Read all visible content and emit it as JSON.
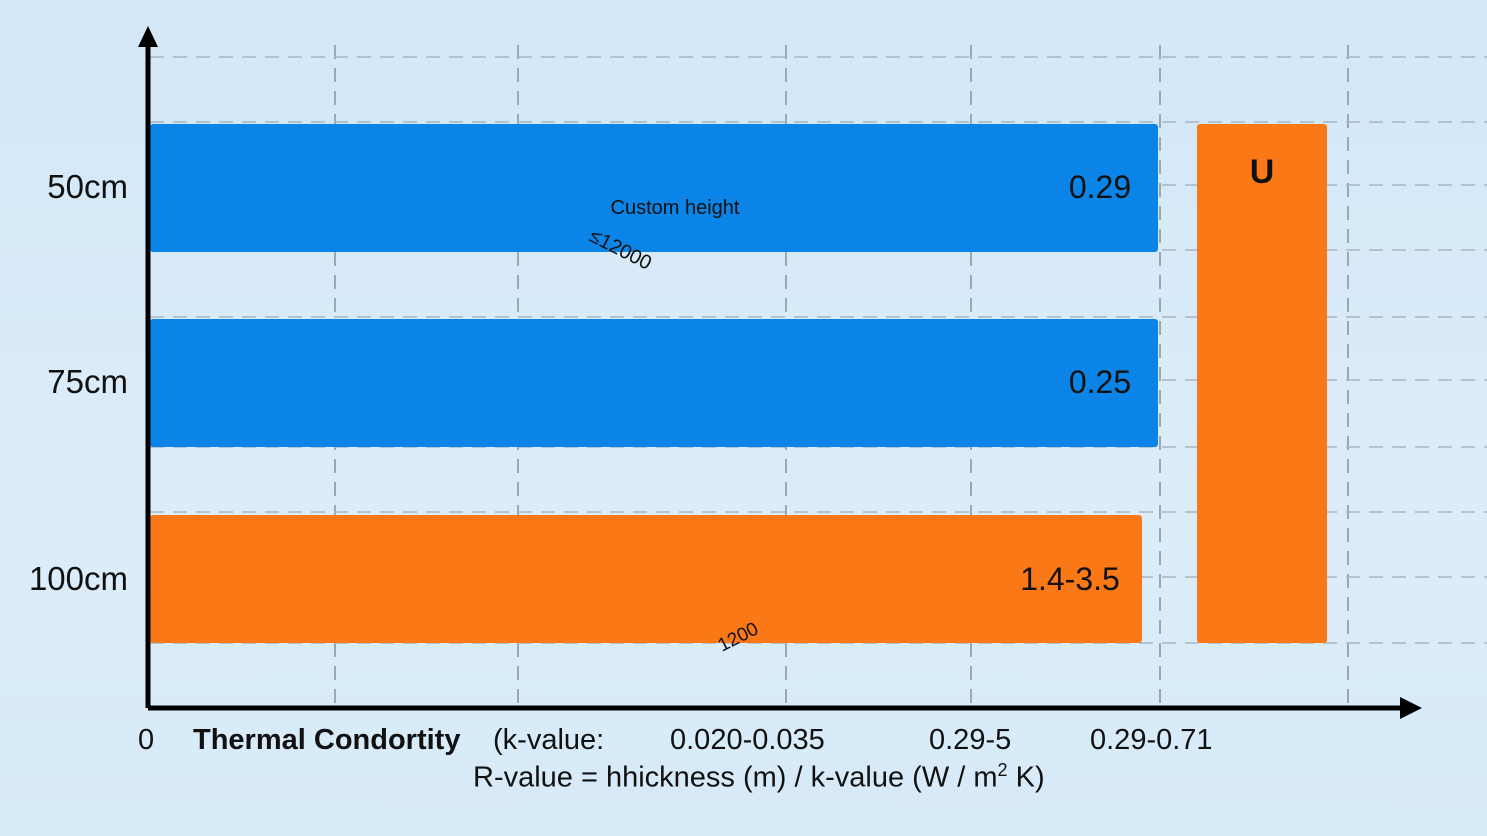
{
  "chart_data": {
    "type": "bar",
    "orientation": "horizontal",
    "categories": [
      "50cm",
      "75cm",
      "100cm"
    ],
    "bars": [
      {
        "category": "50cm",
        "label": "0.29",
        "color": "#0a84e6"
      },
      {
        "category": "75cm",
        "label": "0.25",
        "color": "#0a84e6"
      },
      {
        "category": "100cm",
        "label": "1.4-3.5",
        "color": "#fb7816"
      }
    ],
    "side_bar": {
      "label": "U",
      "color": "#fb7816"
    },
    "annotations": [
      "Custom height",
      "≤12000",
      "1200"
    ],
    "x_origin_label": "0",
    "xlabel_bold": "Thermal Condortity",
    "xlabel_rest": "(k-value:",
    "x_tick_labels": [
      "0.020-0.035",
      "0.29-5",
      "0.29-0.71"
    ],
    "formula": "R-value = hhickness (m) / k-value (W / m",
    "formula_sup": "2",
    "formula_end": " K)",
    "grid": true
  }
}
